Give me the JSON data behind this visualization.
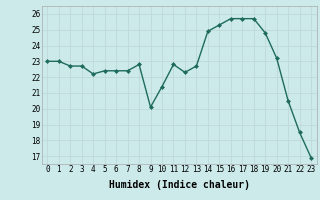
{
  "x": [
    0,
    1,
    2,
    3,
    4,
    5,
    6,
    7,
    8,
    9,
    10,
    11,
    12,
    13,
    14,
    15,
    16,
    17,
    18,
    19,
    20,
    21,
    22,
    23
  ],
  "y": [
    23.0,
    23.0,
    22.7,
    22.7,
    22.2,
    22.4,
    22.4,
    22.4,
    22.8,
    20.1,
    21.4,
    22.8,
    22.3,
    22.7,
    24.9,
    25.3,
    25.7,
    25.7,
    25.7,
    24.8,
    23.2,
    20.5,
    18.5,
    16.9
  ],
  "line_color": "#1e6b5e",
  "marker": "D",
  "marker_size": 2,
  "bg_color": "#cceaea",
  "grid_color": "#c0d8d8",
  "xlabel": "Humidex (Indice chaleur)",
  "ylim": [
    16.5,
    26.5
  ],
  "xlim": [
    -0.5,
    23.5
  ],
  "yticks": [
    17,
    18,
    19,
    20,
    21,
    22,
    23,
    24,
    25,
    26
  ],
  "xticks": [
    0,
    1,
    2,
    3,
    4,
    5,
    6,
    7,
    8,
    9,
    10,
    11,
    12,
    13,
    14,
    15,
    16,
    17,
    18,
    19,
    20,
    21,
    22,
    23
  ],
  "tick_fontsize": 5.5,
  "xlabel_fontsize": 7.0,
  "linewidth": 1.0
}
